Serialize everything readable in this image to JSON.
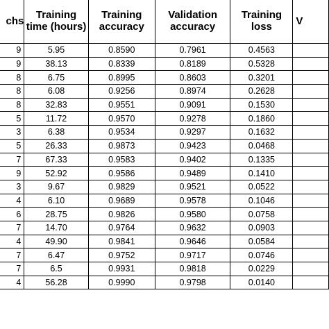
{
  "headers": [
    "chs",
    "Training time (hours)",
    "Training accuracy",
    "Validation accuracy",
    "Training loss",
    "V"
  ],
  "rows": [
    [
      "9",
      "5.95",
      "0.8590",
      "0.7961",
      "0.4563",
      ""
    ],
    [
      "9",
      "38.13",
      "0.8339",
      "0.8189",
      "0.5328",
      ""
    ],
    [
      "8",
      "6.75",
      "0.8995",
      "0.8603",
      "0.3201",
      ""
    ],
    [
      "8",
      "6.08",
      "0.9256",
      "0.8974",
      "0.2628",
      ""
    ],
    [
      "8",
      "32.83",
      "0.9551",
      "0.9091",
      "0.1530",
      ""
    ],
    [
      "5",
      "11.72",
      "0.9570",
      "0.9278",
      "0.1860",
      ""
    ],
    [
      "3",
      "6.38",
      "0.9534",
      "0.9297",
      "0.1632",
      ""
    ],
    [
      "5",
      "26.33",
      "0.9873",
      "0.9423",
      "0.0468",
      ""
    ],
    [
      "7",
      "67.33",
      "0.9583",
      "0.9402",
      "0.1335",
      ""
    ],
    [
      "9",
      "52.92",
      "0.9586",
      "0.9489",
      "0.1410",
      ""
    ],
    [
      "3",
      "9.67",
      "0.9829",
      "0.9521",
      "0.0522",
      ""
    ],
    [
      "4",
      "6.10",
      "0.9689",
      "0.9578",
      "0.1046",
      ""
    ],
    [
      "6",
      "28.75",
      "0.9826",
      "0.9580",
      "0.0758",
      ""
    ],
    [
      "7",
      "14.70",
      "0.9764",
      "0.9632",
      "0.0903",
      ""
    ],
    [
      "4",
      "49.90",
      "0.9841",
      "0.9646",
      "0.0584",
      ""
    ],
    [
      "7",
      "6.47",
      "0.9752",
      "0.9717",
      "0.0746",
      ""
    ],
    [
      "7",
      "6.5",
      "0.9931",
      "0.9818",
      "0.0229",
      ""
    ],
    [
      "4",
      "56.28",
      "0.9990",
      "0.9798",
      "0.0140",
      ""
    ]
  ]
}
